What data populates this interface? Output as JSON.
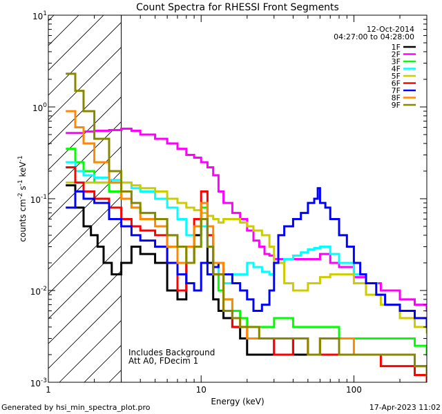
{
  "chart_data": {
    "type": "line",
    "title": "Count Spectra for RHESSI Front Segments",
    "xlabel": "Energy (keV)",
    "ylabel_parts": {
      "pre": "counts cm",
      "e1": "-2",
      "mid": " s",
      "e2": "-1",
      "post": " keV",
      "e3": "-1"
    },
    "x_scale": "log",
    "y_scale": "log",
    "xlim": [
      1,
      300
    ],
    "ylim": [
      0.001,
      10
    ],
    "x_ticks": [
      {
        "value": 1,
        "label": "1"
      },
      {
        "value": 10,
        "label": "10"
      },
      {
        "value": 100,
        "label": "100"
      }
    ],
    "y_ticks": [
      {
        "value": 0.001,
        "base": "10",
        "exp": "-3"
      },
      {
        "value": 0.01,
        "base": "10",
        "exp": "-2"
      },
      {
        "value": 0.1,
        "base": "10",
        "exp": "-1"
      },
      {
        "value": 1,
        "base": "10",
        "exp": "0"
      },
      {
        "value": 10,
        "base": "10",
        "exp": "1"
      }
    ],
    "shaded_region": {
      "x_min": 1,
      "x_max": 3,
      "pattern": "diagonal-hatch"
    },
    "info": {
      "date": "12-Oct-2014",
      "time_range": "04:27:00 to 04:28:00"
    },
    "annotation_lines": [
      "Includes Background",
      "Att A0, FDecim 1"
    ],
    "legend_position": "top-right",
    "series": [
      {
        "name": "1F",
        "color": "#000000",
        "x": [
          1.3,
          1.5,
          1.7,
          1.9,
          2.1,
          2.3,
          2.6,
          3.0,
          3.5,
          4.0,
          5.0,
          6.0,
          7.0,
          8.0,
          9.0,
          10.0,
          11.0,
          12.0,
          13.0,
          14.0,
          16.0,
          18.0,
          20.0,
          24.0,
          30.0,
          40.0,
          50.0,
          60.0,
          80.0,
          100.0,
          120.0,
          150.0,
          200.0,
          250.0,
          300.0
        ],
        "y": [
          0.14,
          0.08,
          0.05,
          0.04,
          0.03,
          0.02,
          0.015,
          0.02,
          0.03,
          0.025,
          0.02,
          0.01,
          0.008,
          0.02,
          0.04,
          0.06,
          0.02,
          0.008,
          0.006,
          0.005,
          0.004,
          0.003,
          0.002,
          0.002,
          0.003,
          0.002,
          0.002,
          0.003,
          0.002,
          0.002,
          0.002,
          0.002,
          0.002,
          0.0015,
          0.0012
        ]
      },
      {
        "name": "2F",
        "color": "#ff00ff",
        "x": [
          1.3,
          1.5,
          1.7,
          2.0,
          2.5,
          3.0,
          3.5,
          4.0,
          5.0,
          6.0,
          7.0,
          8.0,
          9.0,
          10.0,
          11.0,
          12.0,
          13.0,
          14.0,
          16.0,
          18.0,
          20.0,
          22.0,
          24.0,
          26.0,
          28.0,
          30.0,
          35.0,
          40.0,
          50.0,
          60.0,
          70.0,
          80.0,
          100.0,
          120.0,
          150.0,
          200.0,
          250.0,
          300.0
        ],
        "y": [
          0.52,
          0.52,
          0.54,
          0.55,
          0.56,
          0.58,
          0.55,
          0.5,
          0.45,
          0.4,
          0.35,
          0.3,
          0.28,
          0.25,
          0.22,
          0.18,
          0.12,
          0.09,
          0.07,
          0.06,
          0.045,
          0.035,
          0.03,
          0.025,
          0.024,
          0.022,
          0.022,
          0.022,
          0.022,
          0.025,
          0.02,
          0.018,
          0.014,
          0.012,
          0.01,
          0.008,
          0.007,
          0.006
        ]
      },
      {
        "name": "3F",
        "color": "#00ff00",
        "x": [
          1.3,
          1.5,
          1.7,
          2.0,
          2.5,
          3.0,
          3.5,
          4.0,
          5.0,
          6.0,
          7.0,
          8.0,
          9.0,
          10.0,
          11.0,
          12.0,
          13.0,
          14.0,
          16.0,
          18.0,
          20.0,
          24.0,
          30.0,
          40.0,
          50.0,
          60.0,
          80.0,
          100.0,
          120.0,
          150.0,
          200.0,
          250.0,
          300.0
        ],
        "y": [
          0.35,
          0.25,
          0.2,
          0.15,
          0.12,
          0.1,
          0.08,
          0.07,
          0.06,
          0.04,
          0.03,
          0.02,
          0.05,
          0.08,
          0.04,
          0.02,
          0.01,
          0.008,
          0.006,
          0.005,
          0.004,
          0.004,
          0.005,
          0.004,
          0.004,
          0.004,
          0.003,
          0.003,
          0.003,
          0.003,
          0.003,
          0.0025,
          0.002
        ]
      },
      {
        "name": "4F",
        "color": "#00ffff",
        "x": [
          1.3,
          1.5,
          1.7,
          2.0,
          2.5,
          3.0,
          3.5,
          4.0,
          5.0,
          6.0,
          7.0,
          8.0,
          9.0,
          10.0,
          11.0,
          12.0,
          13.0,
          14.0,
          16.0,
          18.0,
          20.0,
          22.0,
          25.0,
          28.0,
          30.0,
          35.0,
          40.0,
          45.0,
          50.0,
          55.0,
          60.0,
          70.0,
          80.0,
          100.0,
          120.0
        ],
        "y": [
          0.25,
          0.2,
          0.18,
          0.17,
          0.16,
          0.15,
          0.13,
          0.12,
          0.1,
          0.08,
          0.06,
          0.04,
          0.03,
          0.05,
          0.03,
          0.02,
          0.015,
          0.012,
          0.015,
          0.015,
          0.02,
          0.018,
          0.016,
          0.015,
          0.02,
          0.022,
          0.024,
          0.026,
          0.028,
          0.029,
          0.03,
          0.025,
          0.02,
          0.015,
          0.012
        ]
      },
      {
        "name": "5F",
        "color": "#cccc00",
        "x": [
          1.3,
          1.5,
          1.7,
          2.0,
          2.5,
          3.0,
          3.5,
          4.0,
          5.0,
          6.0,
          7.0,
          8.0,
          9.0,
          10.0,
          11.0,
          12.0,
          13.0,
          14.0,
          16.0,
          18.0,
          20.0,
          22.0,
          25.0,
          28.0,
          30.0,
          35.0,
          40.0,
          50.0,
          60.0,
          70.0,
          80.0,
          100.0,
          120.0,
          150.0,
          200.0,
          250.0,
          300.0
        ],
        "y": [
          0.15,
          0.15,
          0.15,
          0.15,
          0.15,
          0.15,
          0.14,
          0.13,
          0.12,
          0.1,
          0.09,
          0.08,
          0.075,
          0.07,
          0.065,
          0.06,
          0.055,
          0.06,
          0.06,
          0.055,
          0.05,
          0.045,
          0.04,
          0.03,
          0.02,
          0.012,
          0.01,
          0.012,
          0.014,
          0.015,
          0.015,
          0.012,
          0.009,
          0.007,
          0.005,
          0.004,
          0.0035
        ]
      },
      {
        "name": "6F",
        "color": "#ff0000",
        "x": [
          1.3,
          1.5,
          1.7,
          2.0,
          2.5,
          3.0,
          3.5,
          4.0,
          5.0,
          6.0,
          7.0,
          8.0,
          9.0,
          10.0,
          11.0,
          12.0,
          14.0,
          16.0,
          18.0,
          20.0,
          24.0,
          30.0,
          40.0,
          50.0,
          60.0,
          80.0,
          100.0,
          150.0,
          200.0,
          250.0,
          300.0
        ],
        "y": [
          0.22,
          0.15,
          0.12,
          0.1,
          0.08,
          0.06,
          0.05,
          0.045,
          0.04,
          0.02,
          0.01,
          0.02,
          0.06,
          0.12,
          0.04,
          0.015,
          0.006,
          0.004,
          0.004,
          0.003,
          0.003,
          0.002,
          0.003,
          0.002,
          0.002,
          0.002,
          0.002,
          0.0015,
          0.0015,
          0.0012,
          0.001
        ]
      },
      {
        "name": "7F",
        "color": "#0000ff",
        "x": [
          1.3,
          1.5,
          1.7,
          2.0,
          2.5,
          3.0,
          3.5,
          4.0,
          5.0,
          6.0,
          7.0,
          8.0,
          9.0,
          10.0,
          11.0,
          12.0,
          13.0,
          14.0,
          16.0,
          18.0,
          20.0,
          22.0,
          25.0,
          28.0,
          30.0,
          32.0,
          35.0,
          40.0,
          45.0,
          50.0,
          55.0,
          58.0,
          60.0,
          65.0,
          70.0,
          80.0,
          90.0,
          100.0,
          110.0,
          120.0,
          140.0,
          160.0,
          200.0,
          250.0,
          300.0
        ],
        "y": [
          0.08,
          0.12,
          0.1,
          0.09,
          0.06,
          0.05,
          0.04,
          0.035,
          0.03,
          0.02,
          0.015,
          0.012,
          0.01,
          0.02,
          0.015,
          0.018,
          0.02,
          0.015,
          0.012,
          0.01,
          0.008,
          0.006,
          0.007,
          0.01,
          0.02,
          0.04,
          0.05,
          0.06,
          0.07,
          0.09,
          0.1,
          0.13,
          0.09,
          0.08,
          0.06,
          0.04,
          0.03,
          0.02,
          0.015,
          0.012,
          0.009,
          0.007,
          0.006,
          0.005,
          0.004
        ]
      },
      {
        "name": "8F",
        "color": "#ff8800",
        "x": [
          1.3,
          1.5,
          1.7,
          2.0,
          2.5,
          3.0,
          3.5,
          4.0,
          5.0,
          6.0,
          7.0,
          8.0,
          9.0,
          10.0,
          11.0,
          12.0,
          14.0,
          16.0,
          18.0,
          20.0,
          24.0,
          30.0,
          40.0,
          50.0,
          60.0,
          80.0,
          100.0,
          150.0,
          200.0,
          250.0,
          300.0
        ],
        "y": [
          0.9,
          0.6,
          0.4,
          0.25,
          0.15,
          0.1,
          0.08,
          0.06,
          0.05,
          0.03,
          0.02,
          0.03,
          0.05,
          0.09,
          0.05,
          0.02,
          0.008,
          0.005,
          0.004,
          0.003,
          0.003,
          0.003,
          0.003,
          0.002,
          0.003,
          0.003,
          0.002,
          0.002,
          0.002,
          0.0015,
          0.0012
        ]
      },
      {
        "name": "9F",
        "color": "#888800",
        "x": [
          1.3,
          1.5,
          1.7,
          2.0,
          2.5,
          3.0,
          3.5,
          4.0,
          5.0,
          6.0,
          7.0,
          8.0,
          9.0,
          10.0,
          11.0,
          12.0,
          14.0,
          16.0,
          18.0,
          20.0,
          24.0,
          30.0,
          40.0,
          50.0,
          60.0,
          80.0,
          100.0,
          150.0,
          200.0,
          250.0,
          300.0
        ],
        "y": [
          2.3,
          1.5,
          0.9,
          0.45,
          0.2,
          0.12,
          0.09,
          0.07,
          0.06,
          0.04,
          0.03,
          0.02,
          0.03,
          0.06,
          0.03,
          0.015,
          0.006,
          0.005,
          0.004,
          0.004,
          0.003,
          0.003,
          0.003,
          0.002,
          0.003,
          0.002,
          0.002,
          0.002,
          0.002,
          0.0015,
          0.0012
        ]
      }
    ]
  },
  "footer": {
    "left": "Generated by hsi_min_spectra_plot.pro",
    "right": "17-Apr-2023 11:02"
  }
}
